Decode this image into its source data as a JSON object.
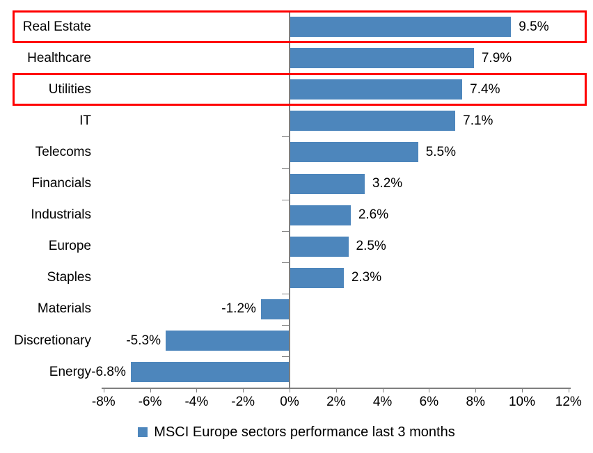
{
  "chart_data": {
    "type": "bar",
    "orientation": "horizontal",
    "categories": [
      "Real Estate",
      "Healthcare",
      "Utilities",
      "IT",
      "Telecoms",
      "Financials",
      "Industrials",
      "Europe",
      "Staples",
      "Materials",
      "Discretionary",
      "Energy"
    ],
    "values": [
      9.5,
      7.9,
      7.4,
      7.1,
      5.5,
      3.2,
      2.6,
      2.5,
      2.3,
      -1.2,
      -5.3,
      -6.8
    ],
    "value_labels": [
      "9.5%",
      "7.9%",
      "7.4%",
      "7.1%",
      "5.5%",
      "3.2%",
      "2.6%",
      "2.5%",
      "2.3%",
      "-1.2%",
      "-5.3%",
      "-6.8%"
    ],
    "legend": "MSCI Europe sectors performance last 3 months",
    "legend_position": "bottom",
    "x_axis": {
      "range": [
        -8,
        12
      ],
      "tick_values": [
        -8,
        -6,
        -4,
        -2,
        0,
        2,
        4,
        6,
        8,
        10,
        12
      ],
      "tick_labels": [
        "-8%",
        "-6%",
        "-4%",
        "-2%",
        "0%",
        "2%",
        "4%",
        "6%",
        "8%",
        "10%",
        "12%"
      ]
    },
    "grid": false,
    "highlighted_categories": [
      "Real Estate",
      "Utilities"
    ],
    "colors": {
      "bar": "#4D86BC",
      "axis": "#7F7F7F",
      "highlight_border": "#FF0000",
      "text": "#000000",
      "background": "#FFFFFF"
    }
  }
}
